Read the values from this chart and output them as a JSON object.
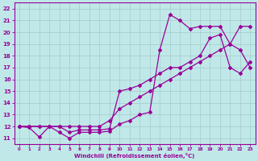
{
  "xlabel": "Windchill (Refroidissement éolien,°C)",
  "bg_color": "#c0e8e8",
  "line_color": "#990099",
  "grid_color": "#a8d0d0",
  "xlim": [
    -0.5,
    23.5
  ],
  "ylim": [
    10.5,
    22.5
  ],
  "xticks": [
    0,
    1,
    2,
    3,
    4,
    5,
    6,
    7,
    8,
    9,
    10,
    11,
    12,
    13,
    14,
    15,
    16,
    17,
    18,
    19,
    20,
    21,
    22,
    23
  ],
  "yticks": [
    11,
    12,
    13,
    14,
    15,
    16,
    17,
    18,
    19,
    20,
    21,
    22
  ],
  "s1_x": [
    0,
    1,
    2,
    3,
    4,
    5,
    6,
    7,
    8,
    9,
    10,
    11,
    12,
    13,
    14,
    15,
    16,
    17,
    18,
    19,
    20,
    21,
    22,
    23
  ],
  "s1_y": [
    12,
    11.9,
    11.1,
    12,
    11.5,
    11.0,
    11.5,
    11.5,
    11.5,
    11.6,
    12.2,
    12.5,
    13.0,
    13.2,
    18.5,
    21.5,
    21.0,
    20.3,
    20.5,
    20.5,
    20.5,
    19.0,
    18.5,
    17.0
  ],
  "s2_x": [
    0,
    1,
    2,
    3,
    4,
    5,
    6,
    7,
    8,
    9,
    10,
    11,
    12,
    13,
    14,
    15,
    16,
    17,
    18,
    19,
    20,
    21,
    22,
    23
  ],
  "s2_y": [
    12,
    12,
    12,
    12,
    12,
    11.5,
    11.7,
    11.7,
    11.7,
    11.8,
    15.0,
    15.2,
    15.5,
    16.0,
    16.5,
    17.0,
    17.0,
    17.5,
    18.0,
    19.5,
    19.8,
    17.0,
    16.5,
    17.5
  ],
  "s3_x": [
    0,
    1,
    2,
    3,
    4,
    5,
    6,
    7,
    8,
    9,
    10,
    11,
    12,
    13,
    14,
    15,
    16,
    17,
    18,
    19,
    20,
    21,
    22,
    23
  ],
  "s3_y": [
    12,
    12,
    12,
    12,
    12,
    12,
    12,
    12,
    12,
    12.5,
    13.5,
    14.0,
    14.5,
    15.0,
    15.5,
    16.0,
    16.5,
    17.0,
    17.5,
    18.0,
    18.5,
    19.0,
    20.5,
    20.5
  ]
}
